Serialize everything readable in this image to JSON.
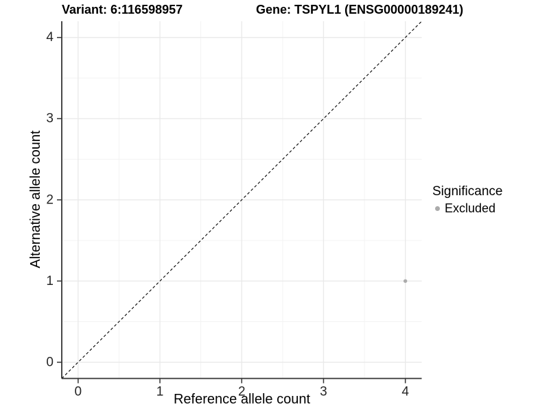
{
  "header": {
    "variant_title": "Variant: 6:116598957",
    "gene_title": "Gene: TSPYL1 (ENSG00000189241)"
  },
  "legend": {
    "title": "Significance",
    "items": [
      {
        "label": "Excluded",
        "color": "#ABABAB"
      }
    ]
  },
  "chart_data": {
    "type": "scatter",
    "title": "Variant: 6:116598957 / Gene: TSPYL1 (ENSG00000189241)",
    "xlabel": "Reference allele count",
    "ylabel": "Alternative allele count",
    "xlim": [
      -0.2,
      4.2
    ],
    "ylim": [
      -0.2,
      4.2
    ],
    "x_ticks": [
      0,
      1,
      2,
      3,
      4
    ],
    "y_ticks": [
      0,
      1,
      2,
      3,
      4
    ],
    "x_minor_ticks": [
      0.5,
      1.5,
      2.5,
      3.5
    ],
    "y_minor_ticks": [
      0.5,
      1.5,
      2.5,
      3.5
    ],
    "grid": "major+minor",
    "legend_position": "right",
    "series": [
      {
        "name": "Excluded",
        "color": "#ABABAB",
        "points": [
          {
            "x": 4,
            "y": 1
          }
        ]
      }
    ],
    "identity_line": {
      "slope": 1,
      "intercept": 0,
      "style": "dashed",
      "color": "#000000"
    }
  },
  "colors": {
    "background": "#FFFFFF",
    "grid_major": "#E9E9E9",
    "grid_minor": "#F3F3F3",
    "axis_line": "#333333",
    "tick_text": "#262626",
    "title_text": "#000000",
    "point": "#ABABAB"
  }
}
